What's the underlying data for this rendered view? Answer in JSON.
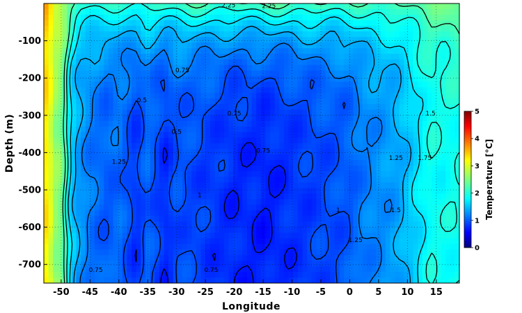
{
  "chart_data": {
    "type": "heatmap",
    "title": "",
    "xlabel": "Longitude",
    "ylabel": "Depth (m)",
    "xlim": [
      -53,
      19
    ],
    "ylim": [
      -750,
      0
    ],
    "xticks": [
      -50,
      -45,
      -40,
      -35,
      -30,
      -25,
      -20,
      -15,
      -10,
      -5,
      0,
      5,
      10,
      15
    ],
    "yticks": [
      -100,
      -200,
      -300,
      -400,
      -500,
      -600,
      -700
    ],
    "grid": true,
    "colorbar": {
      "label": "Temperature [°C]",
      "range": [
        0,
        5
      ],
      "ticks": [
        0,
        1,
        2,
        3,
        4,
        5
      ],
      "colormap": "jet"
    },
    "contour_levels": [
      0.5,
      0.75,
      1,
      1.25,
      1.5,
      1.75,
      2,
      2.25
    ],
    "profiles": [
      {
        "x": -52.5,
        "surface": 3.6,
        "deep": 3.2
      },
      {
        "x": -51,
        "surface": 3.0,
        "deep": 2.6
      },
      {
        "x": -50,
        "surface": 2.9,
        "deep": 2.5
      },
      {
        "x": -48.5,
        "surface": 2.4,
        "deep": 1.7
      },
      {
        "x": -47,
        "surface": 2.1,
        "deep": 1.4
      },
      {
        "x": -45,
        "surface": 2.1,
        "deep": 1.2
      },
      {
        "x": -42,
        "surface": 2.1,
        "deep": 1.05
      },
      {
        "x": -40,
        "surface": 2.05,
        "deep": 1.15
      },
      {
        "x": -37,
        "surface": 2.1,
        "deep": 0.85
      },
      {
        "x": -35,
        "surface": 2.15,
        "deep": 1.1
      },
      {
        "x": -32,
        "surface": 2.2,
        "deep": 0.8
      },
      {
        "x": -30,
        "surface": 2.2,
        "deep": 1.0
      },
      {
        "x": -27,
        "surface": 2.25,
        "deep": 0.95
      },
      {
        "x": -25,
        "surface": 2.25,
        "deep": 0.9
      },
      {
        "x": -22,
        "surface": 2.2,
        "deep": 0.85
      },
      {
        "x": -20,
        "surface": 2.2,
        "deep": 0.8
      },
      {
        "x": -17,
        "surface": 2.25,
        "deep": 0.8
      },
      {
        "x": -15,
        "surface": 2.3,
        "deep": 0.75
      },
      {
        "x": -12,
        "surface": 2.3,
        "deep": 0.8
      },
      {
        "x": -10,
        "surface": 2.25,
        "deep": 0.85
      },
      {
        "x": -7,
        "surface": 2.25,
        "deep": 0.9
      },
      {
        "x": -5,
        "surface": 2.25,
        "deep": 0.95
      },
      {
        "x": -2,
        "surface": 2.2,
        "deep": 1.0
      },
      {
        "x": 0,
        "surface": 2.2,
        "deep": 1.05
      },
      {
        "x": 2,
        "surface": 2.2,
        "deep": 1.2
      },
      {
        "x": 5,
        "surface": 2.25,
        "deep": 1.3
      },
      {
        "x": 8,
        "surface": 2.25,
        "deep": 1.4
      },
      {
        "x": 10,
        "surface": 2.3,
        "deep": 1.55
      },
      {
        "x": 12,
        "surface": 2.35,
        "deep": 1.75
      },
      {
        "x": 14,
        "surface": 2.4,
        "deep": 1.95
      },
      {
        "x": 16,
        "surface": 2.4,
        "deep": 1.9
      },
      {
        "x": 18,
        "surface": 2.5,
        "deep": 1.95
      }
    ],
    "annotations": [
      {
        "text": "2.25",
        "x": -21,
        "y": -10
      },
      {
        "text": "2.25",
        "x": -14,
        "y": -12
      },
      {
        "text": "0.75",
        "x": -29,
        "y": -185
      },
      {
        "text": "0.5",
        "x": -36,
        "y": -265
      },
      {
        "text": "0.75",
        "x": -20,
        "y": -300
      },
      {
        "text": "0.5",
        "x": -30,
        "y": -350
      },
      {
        "text": "0.75",
        "x": -15,
        "y": -400
      },
      {
        "text": "1.25",
        "x": -40,
        "y": -430
      },
      {
        "text": "1.25",
        "x": 8,
        "y": -420
      },
      {
        "text": "1.75",
        "x": 13,
        "y": -420
      },
      {
        "text": "1",
        "x": -2,
        "y": -560
      },
      {
        "text": "1.5",
        "x": 8,
        "y": -560
      },
      {
        "text": "1.25",
        "x": 1,
        "y": -640
      },
      {
        "text": "1",
        "x": -26,
        "y": -520
      },
      {
        "text": "0.75",
        "x": -44,
        "y": -720
      },
      {
        "text": "0.75",
        "x": -24,
        "y": -720
      },
      {
        "text": "1.5",
        "x": 14,
        "y": -300
      }
    ]
  }
}
